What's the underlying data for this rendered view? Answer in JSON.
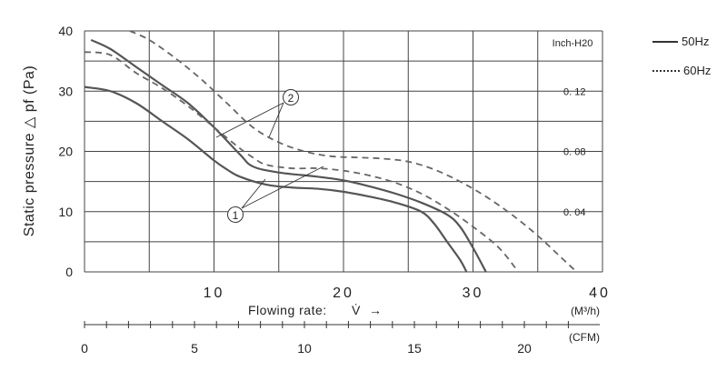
{
  "chart_data": {
    "type": "line",
    "ylabel": "Static pressure △ pf (Pa)",
    "xlabel": "Flowing rate:",
    "xlabel_symbol": "V̇",
    "xlabel_arrow": "→",
    "x_unit": "(M³/h)",
    "x2_unit": "(CFM)",
    "xlim": [
      0,
      40
    ],
    "ylim": [
      0,
      40
    ],
    "xticks": [
      "10",
      "20",
      "30",
      "40"
    ],
    "yticks": [
      "0",
      "10",
      "20",
      "30",
      "40"
    ],
    "x2ticks": [
      "0",
      "5",
      "10",
      "15",
      "20"
    ],
    "right_axis_title": "Inch-H20",
    "right_ticks": [
      "0. 12",
      "0. 08",
      "0. 04"
    ],
    "grid": true,
    "legend": {
      "position": "top-right",
      "items": [
        {
          "label": "50Hz",
          "style": "solid"
        },
        {
          "label": "60Hz",
          "style": "dotted"
        }
      ]
    },
    "annotations": [
      "1",
      "2"
    ],
    "series": [
      {
        "style": "solid",
        "group": "1",
        "points": [
          [
            0,
            30.7
          ],
          [
            2,
            30
          ],
          [
            4,
            28
          ],
          [
            6,
            25
          ],
          [
            8,
            22
          ],
          [
            10,
            18.5
          ],
          [
            11,
            17
          ],
          [
            12,
            15.8
          ],
          [
            14,
            14.5
          ],
          [
            16,
            14
          ],
          [
            18,
            13.8
          ],
          [
            20,
            13.3
          ],
          [
            22,
            12.5
          ],
          [
            24,
            11.5
          ],
          [
            26,
            10
          ],
          [
            27,
            8
          ],
          [
            28,
            5
          ],
          [
            29,
            2
          ],
          [
            29.5,
            0
          ]
        ]
      },
      {
        "style": "solid",
        "group": "2",
        "points": [
          [
            0.5,
            38.5
          ],
          [
            2,
            37
          ],
          [
            4,
            34
          ],
          [
            6,
            31
          ],
          [
            8,
            28
          ],
          [
            10,
            24
          ],
          [
            12,
            19.5
          ],
          [
            13,
            17.5
          ],
          [
            15,
            16.5
          ],
          [
            18,
            15.8
          ],
          [
            20,
            15.2
          ],
          [
            22,
            14.2
          ],
          [
            24,
            13
          ],
          [
            26,
            11.5
          ],
          [
            28,
            9.5
          ],
          [
            29,
            7.5
          ],
          [
            30,
            4
          ],
          [
            31,
            0
          ]
        ]
      },
      {
        "style": "dashed",
        "group": "1",
        "points": [
          [
            0,
            36.5
          ],
          [
            2,
            36
          ],
          [
            4,
            33
          ],
          [
            6,
            30.5
          ],
          [
            8,
            27.5
          ],
          [
            10,
            24
          ],
          [
            12,
            20.5
          ],
          [
            13,
            19
          ],
          [
            14,
            17.8
          ],
          [
            16,
            17.2
          ],
          [
            18,
            17.2
          ],
          [
            20,
            16.8
          ],
          [
            22,
            16
          ],
          [
            24,
            14.8
          ],
          [
            26,
            13
          ],
          [
            28,
            10.5
          ],
          [
            30,
            7.5
          ],
          [
            32,
            4
          ],
          [
            33.5,
            0
          ]
        ]
      },
      {
        "style": "dashed",
        "group": "2",
        "points": [
          [
            3.5,
            40
          ],
          [
            5,
            38.5
          ],
          [
            7,
            35.5
          ],
          [
            9,
            32
          ],
          [
            11,
            28
          ],
          [
            13,
            24
          ],
          [
            15,
            21.5
          ],
          [
            17,
            20
          ],
          [
            19,
            19.2
          ],
          [
            21,
            19
          ],
          [
            23,
            18.8
          ],
          [
            25,
            18.3
          ],
          [
            27,
            17
          ],
          [
            29,
            15
          ],
          [
            31,
            12.5
          ],
          [
            33,
            9.5
          ],
          [
            35,
            6
          ],
          [
            37,
            2
          ],
          [
            38,
            0
          ]
        ]
      }
    ]
  }
}
